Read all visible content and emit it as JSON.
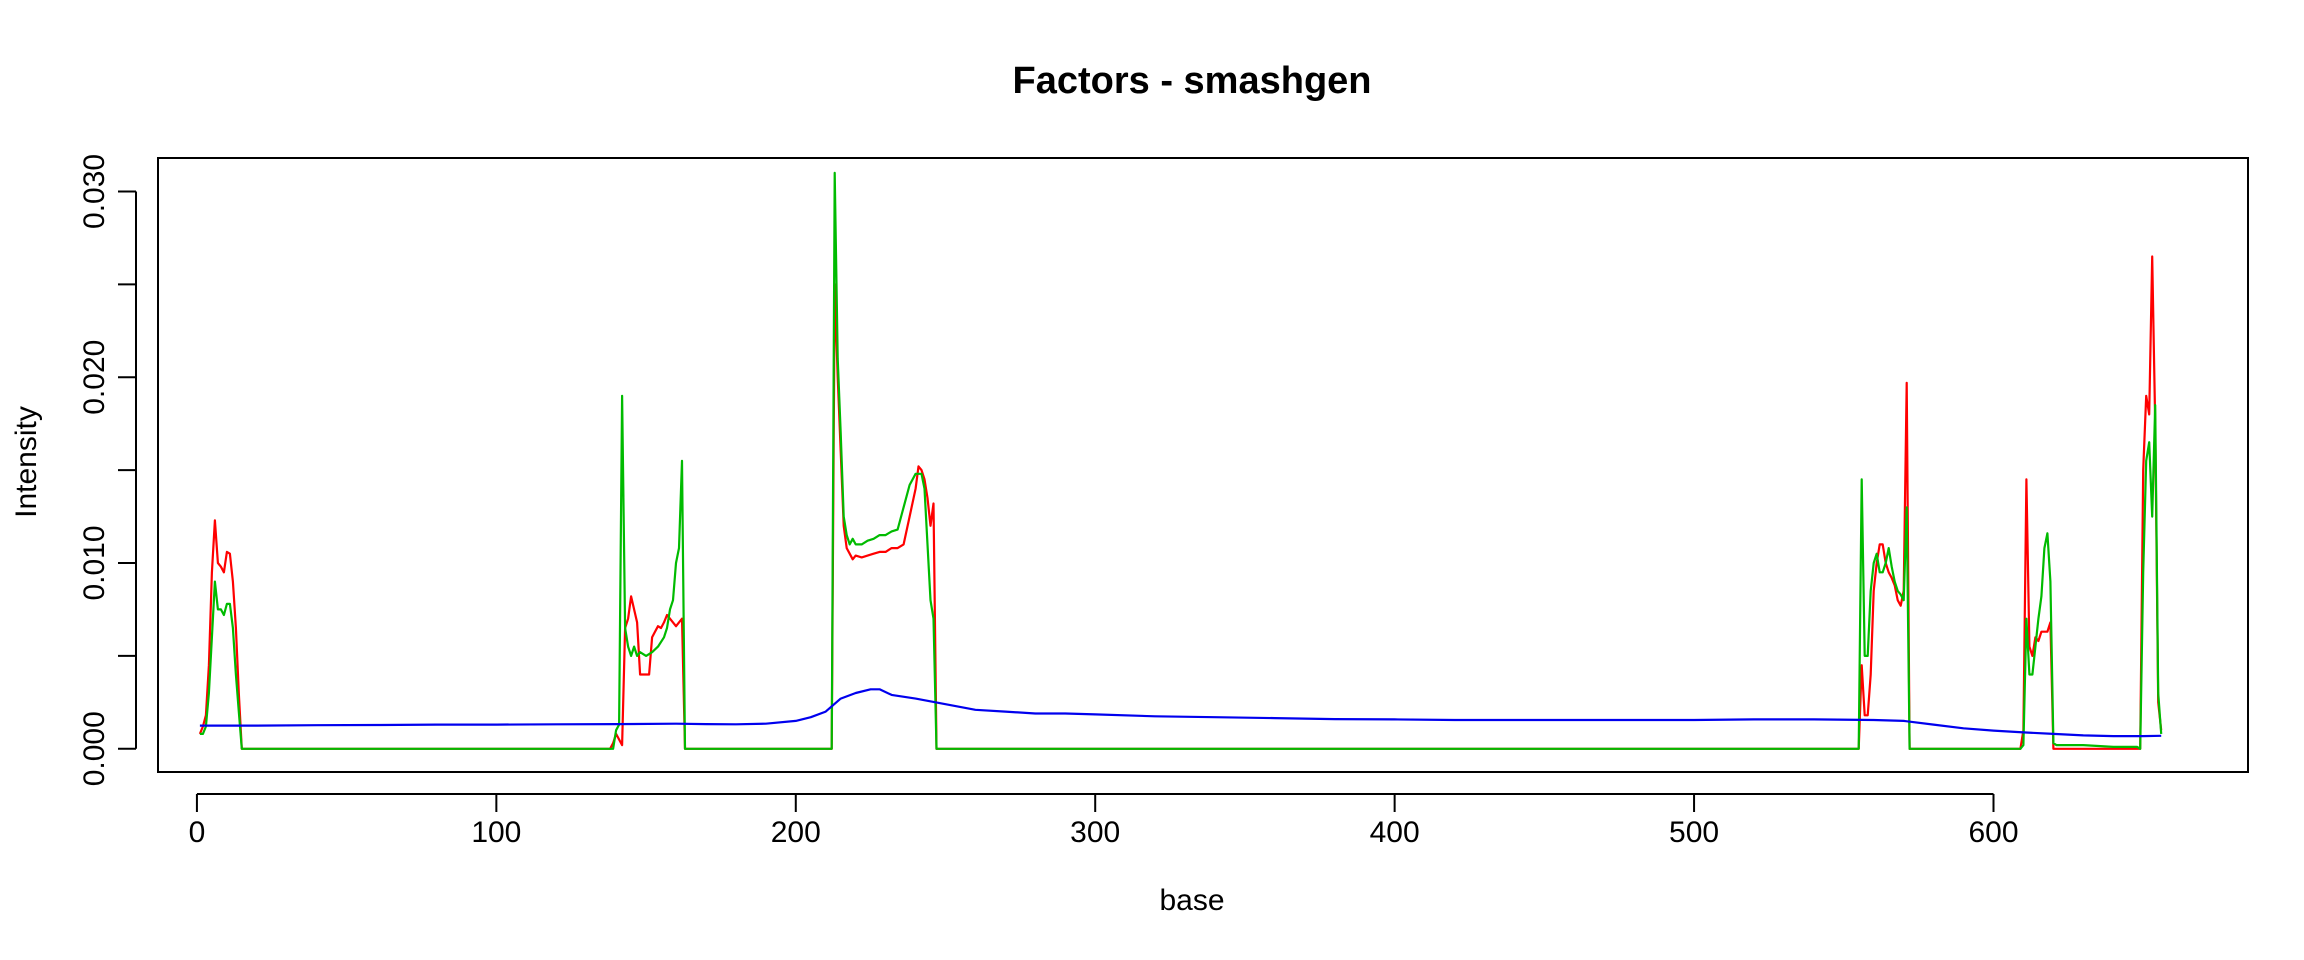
{
  "chart_data": {
    "type": "line",
    "title": "Factors - smashgen",
    "xlabel": "base",
    "ylabel": "Intensity",
    "xlim": [
      -13,
      685
    ],
    "ylim": [
      -0.00125,
      0.0318
    ],
    "x_ticks": [
      0,
      100,
      200,
      300,
      400,
      500,
      600
    ],
    "x_tick_labels": [
      "0",
      "100",
      "200",
      "300",
      "400",
      "500",
      "600"
    ],
    "y_ticks": [
      0.0,
      0.005,
      0.01,
      0.015,
      0.02,
      0.025,
      0.03
    ],
    "y_tick_labels": [
      "0.000",
      "",
      "0.010",
      "",
      "0.020",
      "",
      "0.030"
    ],
    "grid": false,
    "series": [
      {
        "color": "#ff0000",
        "points": [
          [
            1,
            0.0008
          ],
          [
            2,
            0.0012
          ],
          [
            3,
            0.0018
          ],
          [
            4,
            0.0045
          ],
          [
            5,
            0.0095
          ],
          [
            6,
            0.0123
          ],
          [
            7,
            0.01
          ],
          [
            8,
            0.0098
          ],
          [
            9,
            0.0095
          ],
          [
            10,
            0.0106
          ],
          [
            11,
            0.0105
          ],
          [
            12,
            0.009
          ],
          [
            13,
            0.0065
          ],
          [
            14,
            0.003
          ],
          [
            15,
            0.0
          ],
          [
            138,
            0.0
          ],
          [
            139,
            0.0003
          ],
          [
            140,
            0.0008
          ],
          [
            141,
            0.0005
          ],
          [
            142,
            0.0002
          ],
          [
            143,
            0.0065
          ],
          [
            144,
            0.007
          ],
          [
            145,
            0.0082
          ],
          [
            146,
            0.0075
          ],
          [
            147,
            0.0068
          ],
          [
            148,
            0.004
          ],
          [
            149,
            0.004
          ],
          [
            150,
            0.004
          ],
          [
            151,
            0.004
          ],
          [
            152,
            0.006
          ],
          [
            153,
            0.0063
          ],
          [
            154,
            0.0066
          ],
          [
            155,
            0.0065
          ],
          [
            156,
            0.0068
          ],
          [
            157,
            0.0072
          ],
          [
            158,
            0.007
          ],
          [
            159,
            0.0068
          ],
          [
            160,
            0.0066
          ],
          [
            161,
            0.0068
          ],
          [
            162,
            0.007
          ],
          [
            163,
            0.0
          ],
          [
            212,
            0.0
          ],
          [
            213,
            0.025
          ],
          [
            214,
            0.02
          ],
          [
            215,
            0.016
          ],
          [
            216,
            0.012
          ],
          [
            217,
            0.0108
          ],
          [
            218,
            0.0105
          ],
          [
            219,
            0.0102
          ],
          [
            220,
            0.0104
          ],
          [
            222,
            0.0103
          ],
          [
            224,
            0.0104
          ],
          [
            226,
            0.0105
          ],
          [
            228,
            0.0106
          ],
          [
            230,
            0.0106
          ],
          [
            232,
            0.0108
          ],
          [
            234,
            0.0108
          ],
          [
            236,
            0.011
          ],
          [
            238,
            0.0125
          ],
          [
            240,
            0.014
          ],
          [
            241,
            0.0152
          ],
          [
            242,
            0.015
          ],
          [
            243,
            0.0145
          ],
          [
            244,
            0.0135
          ],
          [
            245,
            0.012
          ],
          [
            246,
            0.0132
          ],
          [
            247,
            0.0
          ],
          [
            555,
            0.0
          ],
          [
            556,
            0.0045
          ],
          [
            557,
            0.0018
          ],
          [
            558,
            0.0018
          ],
          [
            559,
            0.004
          ],
          [
            560,
            0.0085
          ],
          [
            561,
            0.01
          ],
          [
            562,
            0.011
          ],
          [
            563,
            0.011
          ],
          [
            564,
            0.01
          ],
          [
            565,
            0.0095
          ],
          [
            566,
            0.0092
          ],
          [
            567,
            0.0088
          ],
          [
            568,
            0.008
          ],
          [
            569,
            0.0077
          ],
          [
            570,
            0.0085
          ],
          [
            571,
            0.0197
          ],
          [
            572,
            0.0
          ],
          [
            609,
            0.0
          ],
          [
            610,
            0.001
          ],
          [
            611,
            0.0145
          ],
          [
            612,
            0.0055
          ],
          [
            613,
            0.005
          ],
          [
            614,
            0.006
          ],
          [
            615,
            0.0058
          ],
          [
            616,
            0.0063
          ],
          [
            617,
            0.0063
          ],
          [
            618,
            0.0063
          ],
          [
            619,
            0.0068
          ],
          [
            620,
            0.0
          ],
          [
            649,
            0.0
          ],
          [
            650,
            0.015
          ],
          [
            651,
            0.019
          ],
          [
            652,
            0.018
          ],
          [
            653,
            0.0265
          ],
          [
            654,
            0.0175
          ],
          [
            655,
            0.0025
          ],
          [
            656,
            0.001
          ]
        ]
      },
      {
        "color": "#00bb00",
        "points": [
          [
            1,
            0.0008
          ],
          [
            2,
            0.0008
          ],
          [
            3,
            0.0012
          ],
          [
            4,
            0.003
          ],
          [
            5,
            0.006
          ],
          [
            6,
            0.009
          ],
          [
            7,
            0.0075
          ],
          [
            8,
            0.0075
          ],
          [
            9,
            0.0072
          ],
          [
            10,
            0.0078
          ],
          [
            11,
            0.0078
          ],
          [
            12,
            0.0065
          ],
          [
            13,
            0.004
          ],
          [
            14,
            0.002
          ],
          [
            15,
            0.0
          ],
          [
            138,
            0.0
          ],
          [
            139,
            0.0
          ],
          [
            140,
            0.001
          ],
          [
            141,
            0.0013
          ],
          [
            142,
            0.019
          ],
          [
            143,
            0.0065
          ],
          [
            144,
            0.0055
          ],
          [
            145,
            0.005
          ],
          [
            146,
            0.0055
          ],
          [
            147,
            0.005
          ],
          [
            148,
            0.0052
          ],
          [
            150,
            0.005
          ],
          [
            152,
            0.0052
          ],
          [
            154,
            0.0055
          ],
          [
            156,
            0.006
          ],
          [
            157,
            0.0065
          ],
          [
            158,
            0.0075
          ],
          [
            159,
            0.008
          ],
          [
            160,
            0.01
          ],
          [
            161,
            0.0108
          ],
          [
            162,
            0.0155
          ],
          [
            163,
            0.0
          ],
          [
            212,
            0.0
          ],
          [
            213,
            0.031
          ],
          [
            214,
            0.021
          ],
          [
            215,
            0.017
          ],
          [
            216,
            0.0125
          ],
          [
            217,
            0.0115
          ],
          [
            218,
            0.011
          ],
          [
            219,
            0.0113
          ],
          [
            220,
            0.011
          ],
          [
            222,
            0.011
          ],
          [
            224,
            0.0112
          ],
          [
            226,
            0.0113
          ],
          [
            228,
            0.0115
          ],
          [
            230,
            0.0115
          ],
          [
            232,
            0.0117
          ],
          [
            234,
            0.0118
          ],
          [
            236,
            0.013
          ],
          [
            238,
            0.0142
          ],
          [
            240,
            0.0148
          ],
          [
            242,
            0.0148
          ],
          [
            243,
            0.014
          ],
          [
            244,
            0.011
          ],
          [
            245,
            0.008
          ],
          [
            246,
            0.007
          ],
          [
            247,
            0.0
          ],
          [
            555,
            0.0
          ],
          [
            556,
            0.0145
          ],
          [
            557,
            0.005
          ],
          [
            558,
            0.005
          ],
          [
            559,
            0.0085
          ],
          [
            560,
            0.01
          ],
          [
            561,
            0.0105
          ],
          [
            562,
            0.0095
          ],
          [
            563,
            0.0095
          ],
          [
            564,
            0.01
          ],
          [
            565,
            0.0108
          ],
          [
            566,
            0.0098
          ],
          [
            567,
            0.009
          ],
          [
            568,
            0.0085
          ],
          [
            569,
            0.0083
          ],
          [
            570,
            0.008
          ],
          [
            571,
            0.013
          ],
          [
            572,
            0.0
          ],
          [
            609,
            0.0
          ],
          [
            610,
            0.0002
          ],
          [
            611,
            0.007
          ],
          [
            612,
            0.004
          ],
          [
            613,
            0.004
          ],
          [
            614,
            0.0055
          ],
          [
            615,
            0.007
          ],
          [
            616,
            0.0082
          ],
          [
            617,
            0.0108
          ],
          [
            618,
            0.0116
          ],
          [
            619,
            0.009
          ],
          [
            620,
            0.0003
          ],
          [
            621,
            0.0002
          ],
          [
            625,
            0.0002
          ],
          [
            630,
            0.0002
          ],
          [
            640,
            0.0001
          ],
          [
            648,
            0.0001
          ],
          [
            649,
            0.0
          ],
          [
            650,
            0.0095
          ],
          [
            651,
            0.0155
          ],
          [
            652,
            0.0165
          ],
          [
            653,
            0.0125
          ],
          [
            654,
            0.0185
          ],
          [
            655,
            0.003
          ],
          [
            656,
            0.0008
          ]
        ]
      },
      {
        "color": "#0000ee",
        "points": [
          [
            1,
            0.00125
          ],
          [
            20,
            0.00125
          ],
          [
            40,
            0.00127
          ],
          [
            60,
            0.00128
          ],
          [
            80,
            0.0013
          ],
          [
            100,
            0.0013
          ],
          [
            120,
            0.00132
          ],
          [
            140,
            0.00133
          ],
          [
            160,
            0.00135
          ],
          [
            170,
            0.00133
          ],
          [
            180,
            0.00132
          ],
          [
            190,
            0.00135
          ],
          [
            200,
            0.0015
          ],
          [
            205,
            0.0017
          ],
          [
            210,
            0.002
          ],
          [
            215,
            0.0027
          ],
          [
            220,
            0.003
          ],
          [
            225,
            0.0032
          ],
          [
            228,
            0.0032
          ],
          [
            232,
            0.0029
          ],
          [
            240,
            0.0027
          ],
          [
            250,
            0.0024
          ],
          [
            260,
            0.0021
          ],
          [
            270,
            0.002
          ],
          [
            280,
            0.0019
          ],
          [
            290,
            0.0019
          ],
          [
            300,
            0.00185
          ],
          [
            320,
            0.00175
          ],
          [
            340,
            0.0017
          ],
          [
            360,
            0.00165
          ],
          [
            380,
            0.0016
          ],
          [
            400,
            0.00158
          ],
          [
            420,
            0.00155
          ],
          [
            440,
            0.00155
          ],
          [
            460,
            0.00155
          ],
          [
            480,
            0.00155
          ],
          [
            500,
            0.00155
          ],
          [
            520,
            0.00158
          ],
          [
            540,
            0.00158
          ],
          [
            560,
            0.00155
          ],
          [
            570,
            0.0015
          ],
          [
            580,
            0.0013
          ],
          [
            590,
            0.0011
          ],
          [
            600,
            0.00098
          ],
          [
            610,
            0.00088
          ],
          [
            620,
            0.0008
          ],
          [
            630,
            0.00072
          ],
          [
            640,
            0.00068
          ],
          [
            650,
            0.00068
          ],
          [
            656,
            0.0007
          ]
        ]
      }
    ]
  }
}
